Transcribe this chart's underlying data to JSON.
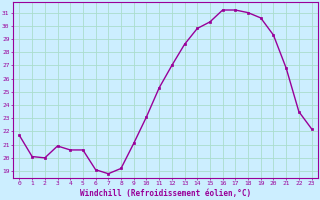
{
  "x": [
    0,
    1,
    2,
    3,
    4,
    5,
    6,
    7,
    8,
    9,
    10,
    11,
    12,
    13,
    14,
    15,
    16,
    17,
    18,
    19,
    20,
    21,
    22,
    23
  ],
  "y": [
    21.7,
    20.1,
    20.0,
    20.9,
    20.6,
    20.6,
    19.1,
    18.8,
    19.2,
    21.1,
    23.1,
    25.3,
    27.0,
    28.6,
    29.8,
    30.3,
    31.2,
    31.2,
    31.0,
    30.6,
    29.3,
    26.8,
    23.5,
    22.2
  ],
  "line_color": "#990099",
  "marker_color": "#990099",
  "bg_color": "#cceeff",
  "grid_color": "#aaddcc",
  "xlabel": "Windchill (Refroidissement éolien,°C)",
  "ylabel_ticks": [
    19,
    20,
    21,
    22,
    23,
    24,
    25,
    26,
    27,
    28,
    29,
    30,
    31
  ],
  "ylim": [
    18.5,
    31.8
  ],
  "xlim": [
    -0.5,
    23.5
  ],
  "xlabel_color": "#990099",
  "tick_color": "#990099",
  "font_family": "monospace"
}
